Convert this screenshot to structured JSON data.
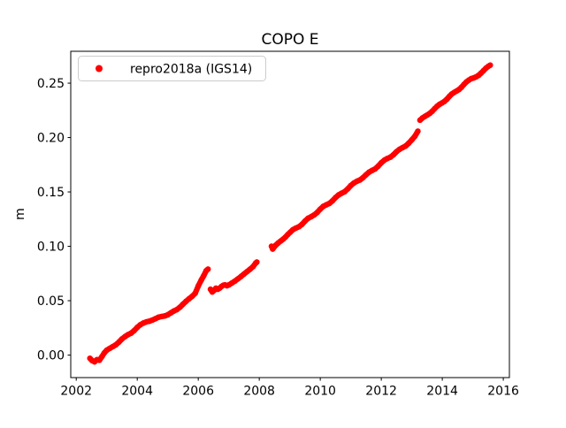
{
  "chart_data": {
    "type": "scatter",
    "title": "COPO E",
    "xlabel": "",
    "ylabel": "m",
    "grid": false,
    "legend": {
      "label": "repro2018a (IGS14)",
      "position": "upper left",
      "marker": "red-dot"
    },
    "marker_color": "#ff0000",
    "xlim": [
      2001.82,
      2016.2
    ],
    "ylim": [
      -0.0207,
      0.2793
    ],
    "xticks": [
      2002,
      2004,
      2006,
      2008,
      2010,
      2012,
      2014,
      2016
    ],
    "xtick_labels": [
      "2002",
      "2004",
      "2006",
      "2008",
      "2010",
      "2012",
      "2014",
      "2016"
    ],
    "yticks": [
      0.0,
      0.05,
      0.1,
      0.15,
      0.2,
      0.25
    ],
    "ytick_labels": [
      "0.00",
      "0.05",
      "0.10",
      "0.15",
      "0.20",
      "0.25"
    ],
    "series": [
      {
        "name": "repro2018a (IGS14)",
        "color": "#ff0000",
        "segments": [
          [
            [
              2002.45,
              -0.003
            ],
            [
              2002.52,
              -0.005
            ],
            [
              2002.6,
              -0.0062
            ],
            [
              2002.68,
              -0.0042
            ],
            [
              2002.76,
              -0.0048
            ],
            [
              2002.84,
              -0.0015
            ],
            [
              2002.92,
              0.002
            ],
            [
              2003.0,
              0.0045
            ],
            [
              2003.1,
              0.0062
            ],
            [
              2003.2,
              0.0078
            ],
            [
              2003.3,
              0.0095
            ],
            [
              2003.4,
              0.012
            ],
            [
              2003.5,
              0.0148
            ],
            [
              2003.6,
              0.017
            ],
            [
              2003.7,
              0.0188
            ],
            [
              2003.8,
              0.0202
            ],
            [
              2003.9,
              0.0225
            ],
            [
              2004.0,
              0.0255
            ],
            [
              2004.1,
              0.0278
            ],
            [
              2004.2,
              0.0295
            ],
            [
              2004.3,
              0.0305
            ],
            [
              2004.4,
              0.0312
            ],
            [
              2004.5,
              0.0322
            ],
            [
              2004.6,
              0.0335
            ],
            [
              2004.7,
              0.0348
            ],
            [
              2004.8,
              0.0355
            ],
            [
              2004.9,
              0.036
            ],
            [
              2005.0,
              0.037
            ],
            [
              2005.1,
              0.0388
            ],
            [
              2005.2,
              0.0405
            ],
            [
              2005.3,
              0.0418
            ],
            [
              2005.4,
              0.044
            ],
            [
              2005.5,
              0.0468
            ],
            [
              2005.6,
              0.0495
            ],
            [
              2005.7,
              0.0518
            ],
            [
              2005.8,
              0.054
            ],
            [
              2005.9,
              0.0568
            ],
            [
              2006.0,
              0.0635
            ],
            [
              2006.1,
              0.069
            ],
            [
              2006.18,
              0.073
            ],
            [
              2006.26,
              0.0775
            ],
            [
              2006.32,
              0.079
            ]
          ],
          [
            [
              2006.4,
              0.0605
            ],
            [
              2006.46,
              0.058
            ],
            [
              2006.52,
              0.0595
            ],
            [
              2006.58,
              0.0615
            ],
            [
              2006.64,
              0.0605
            ],
            [
              2006.7,
              0.0615
            ],
            [
              2006.76,
              0.063
            ],
            [
              2006.82,
              0.0642
            ],
            [
              2006.88,
              0.0645
            ],
            [
              2006.94,
              0.0638
            ],
            [
              2007.0,
              0.0645
            ],
            [
              2007.1,
              0.0662
            ],
            [
              2007.2,
              0.068
            ],
            [
              2007.3,
              0.07
            ],
            [
              2007.4,
              0.0722
            ],
            [
              2007.5,
              0.0745
            ],
            [
              2007.6,
              0.0768
            ],
            [
              2007.7,
              0.079
            ],
            [
              2007.8,
              0.0815
            ],
            [
              2007.88,
              0.0845
            ],
            [
              2007.92,
              0.0855
            ]
          ],
          [
            [
              2008.4,
              0.1
            ],
            [
              2008.44,
              0.0975
            ],
            [
              2008.48,
              0.099
            ],
            [
              2008.54,
              0.101
            ],
            [
              2008.62,
              0.103
            ],
            [
              2008.7,
              0.1048
            ],
            [
              2008.78,
              0.1065
            ],
            [
              2008.86,
              0.1085
            ],
            [
              2008.94,
              0.111
            ],
            [
              2009.02,
              0.113
            ],
            [
              2009.1,
              0.1152
            ],
            [
              2009.2,
              0.1168
            ],
            [
              2009.3,
              0.118
            ],
            [
              2009.4,
              0.1202
            ],
            [
              2009.5,
              0.1232
            ],
            [
              2009.6,
              0.1258
            ],
            [
              2009.7,
              0.1272
            ],
            [
              2009.8,
              0.1288
            ],
            [
              2009.9,
              0.1312
            ],
            [
              2010.0,
              0.1342
            ],
            [
              2010.1,
              0.1368
            ],
            [
              2010.2,
              0.1382
            ],
            [
              2010.3,
              0.1395
            ],
            [
              2010.4,
              0.1418
            ],
            [
              2010.5,
              0.1448
            ],
            [
              2010.6,
              0.1472
            ],
            [
              2010.7,
              0.1488
            ],
            [
              2010.8,
              0.1502
            ],
            [
              2010.9,
              0.1528
            ],
            [
              2011.0,
              0.1558
            ],
            [
              2011.1,
              0.1582
            ],
            [
              2011.2,
              0.1598
            ],
            [
              2011.3,
              0.161
            ],
            [
              2011.4,
              0.163
            ],
            [
              2011.5,
              0.1658
            ],
            [
              2011.6,
              0.1682
            ],
            [
              2011.7,
              0.1698
            ],
            [
              2011.8,
              0.1712
            ],
            [
              2011.9,
              0.1738
            ],
            [
              2012.0,
              0.1768
            ],
            [
              2012.1,
              0.1792
            ],
            [
              2012.2,
              0.1808
            ],
            [
              2012.3,
              0.182
            ],
            [
              2012.4,
              0.1842
            ],
            [
              2012.5,
              0.187
            ],
            [
              2012.6,
              0.1892
            ],
            [
              2012.7,
              0.1908
            ],
            [
              2012.8,
              0.1922
            ],
            [
              2012.9,
              0.1948
            ],
            [
              2013.0,
              0.1978
            ],
            [
              2013.1,
              0.2012
            ],
            [
              2013.2,
              0.2058
            ]
          ],
          [
            [
              2013.27,
              0.216
            ],
            [
              2013.35,
              0.218
            ],
            [
              2013.43,
              0.2195
            ],
            [
              2013.51,
              0.2208
            ],
            [
              2013.59,
              0.2222
            ],
            [
              2013.67,
              0.2242
            ],
            [
              2013.75,
              0.2265
            ],
            [
              2013.83,
              0.2288
            ],
            [
              2013.91,
              0.2305
            ],
            [
              2013.99,
              0.2318
            ],
            [
              2014.07,
              0.2332
            ],
            [
              2014.15,
              0.2352
            ],
            [
              2014.23,
              0.2378
            ],
            [
              2014.31,
              0.24
            ],
            [
              2014.39,
              0.2415
            ],
            [
              2014.47,
              0.2428
            ],
            [
              2014.55,
              0.2442
            ],
            [
              2014.63,
              0.2462
            ],
            [
              2014.71,
              0.2488
            ],
            [
              2014.79,
              0.2512
            ],
            [
              2014.87,
              0.2528
            ],
            [
              2014.95,
              0.2542
            ],
            [
              2015.03,
              0.2548
            ],
            [
              2015.11,
              0.2558
            ],
            [
              2015.19,
              0.2572
            ],
            [
              2015.27,
              0.2592
            ],
            [
              2015.35,
              0.2615
            ],
            [
              2015.43,
              0.2638
            ],
            [
              2015.51,
              0.2655
            ],
            [
              2015.57,
              0.2665
            ]
          ]
        ]
      }
    ]
  }
}
